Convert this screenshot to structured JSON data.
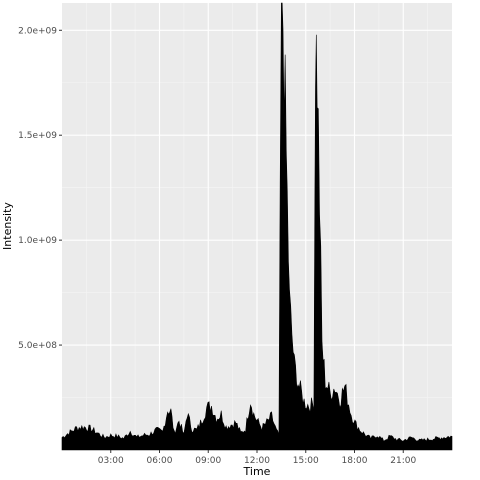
{
  "chart_data": {
    "type": "area",
    "title": "",
    "xlabel": "Time",
    "ylabel": "Intensity",
    "x_unit": "hours",
    "xlim": [
      0,
      24
    ],
    "ylim": [
      0,
      2130000000
    ],
    "x_ticks": [
      {
        "x": 3,
        "label": "03:00"
      },
      {
        "x": 6,
        "label": "06:00"
      },
      {
        "x": 9,
        "label": "09:00"
      },
      {
        "x": 12,
        "label": "12:00"
      },
      {
        "x": 15,
        "label": "15:00"
      },
      {
        "x": 18,
        "label": "18:00"
      },
      {
        "x": 21,
        "label": "21:00"
      }
    ],
    "y_ticks": [
      {
        "y": 500000000,
        "label": "5.0e+08"
      },
      {
        "y": 1000000000,
        "label": "1.0e+09"
      },
      {
        "y": 1500000000,
        "label": "1.5e+09"
      },
      {
        "y": 2000000000,
        "label": "2.0e+09"
      }
    ],
    "grid": true,
    "background": "#ebebeb",
    "fill_color": "#000000",
    "series": [
      {
        "x": [
          0,
          0.5,
          0.9,
          1.3,
          1.8,
          2.2,
          2.6,
          3.0,
          3.4,
          3.8,
          4.2,
          4.6,
          5.0,
          5.4,
          5.8,
          6.2,
          6.5,
          6.7,
          6.9,
          7.2,
          7.5,
          7.7,
          8.0,
          8.3,
          8.6,
          8.9,
          9.2,
          9.5,
          9.8,
          10.1,
          10.4,
          10.7,
          11.0,
          11.3,
          11.6,
          11.8,
          12.0,
          12.3,
          12.6,
          12.9,
          13.2,
          13.35,
          13.5,
          13.6,
          13.8,
          14.0,
          14.3,
          14.6,
          14.9,
          15.2,
          15.5,
          15.6,
          15.7,
          15.85,
          16.0,
          16.2,
          16.5,
          16.8,
          17.1,
          17.4,
          17.8,
          18.1,
          18.4,
          18.7,
          19.0,
          19.4,
          19.8,
          20.2,
          20.6,
          21.0,
          21.5,
          22.0,
          22.5,
          23.0,
          23.5,
          24.0
        ],
        "y": [
          60000000,
          85000000,
          105000000,
          110000000,
          100000000,
          80000000,
          60000000,
          70000000,
          65000000,
          55000000,
          90000000,
          60000000,
          70000000,
          75000000,
          95000000,
          85000000,
          190000000,
          185000000,
          80000000,
          140000000,
          70000000,
          175000000,
          100000000,
          95000000,
          140000000,
          200000000,
          210000000,
          150000000,
          170000000,
          110000000,
          120000000,
          130000000,
          80000000,
          100000000,
          240000000,
          170000000,
          140000000,
          105000000,
          130000000,
          160000000,
          90000000,
          70000000,
          2100000000,
          2050000000,
          1400000000,
          700000000,
          400000000,
          300000000,
          230000000,
          210000000,
          220000000,
          1950000000,
          1800000000,
          1200000000,
          500000000,
          330000000,
          270000000,
          300000000,
          240000000,
          300000000,
          170000000,
          120000000,
          90000000,
          70000000,
          55000000,
          70000000,
          45000000,
          65000000,
          50000000,
          45000000,
          60000000,
          45000000,
          50000000,
          55000000,
          60000000,
          65000000
        ]
      }
    ]
  }
}
